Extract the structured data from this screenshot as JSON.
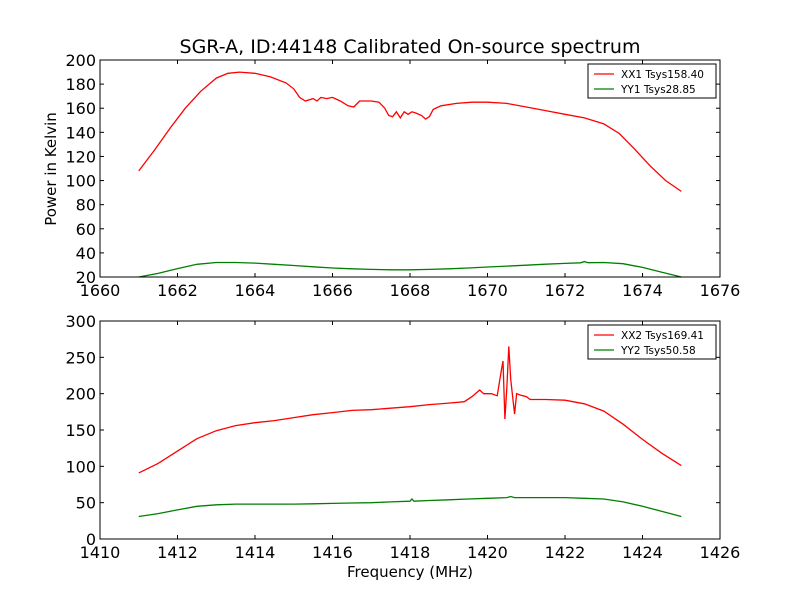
{
  "figure": {
    "title": "SGR-A, ID:44148 Calibrated On-source spectrum",
    "bottom_xlabel": "Frequency (MHz)"
  },
  "chart_data": [
    {
      "type": "line",
      "title": "SGR-A, ID:44148 Calibrated On-source spectrum",
      "xlabel": "",
      "ylabel": "Power in Kelvin",
      "xlim": [
        1660,
        1676
      ],
      "ylim": [
        20,
        200
      ],
      "xticks": [
        "1660",
        "1662",
        "1664",
        "1666",
        "1668",
        "1670",
        "1672",
        "1674",
        "1676"
      ],
      "yticks": [
        "20",
        "40",
        "60",
        "80",
        "100",
        "120",
        "140",
        "160",
        "180",
        "200"
      ],
      "legend_position": "top-right",
      "series": [
        {
          "name": "XX1 Tsys158.40",
          "color": "#ff0000",
          "points": [
            [
              1661.0,
              108
            ],
            [
              1661.4,
              125
            ],
            [
              1661.8,
              143
            ],
            [
              1662.2,
              160
            ],
            [
              1662.6,
              174
            ],
            [
              1663.0,
              185
            ],
            [
              1663.3,
              189
            ],
            [
              1663.6,
              190
            ],
            [
              1664.0,
              189
            ],
            [
              1664.4,
              186
            ],
            [
              1664.8,
              181
            ],
            [
              1665.0,
              176
            ],
            [
              1665.15,
              169
            ],
            [
              1665.3,
              166
            ],
            [
              1665.5,
              168
            ],
            [
              1665.6,
              166
            ],
            [
              1665.7,
              169
            ],
            [
              1665.85,
              168
            ],
            [
              1666.0,
              169
            ],
            [
              1666.2,
              166
            ],
            [
              1666.4,
              162
            ],
            [
              1666.55,
              161
            ],
            [
              1666.7,
              166
            ],
            [
              1667.0,
              166
            ],
            [
              1667.2,
              165
            ],
            [
              1667.35,
              160
            ],
            [
              1667.45,
              154
            ],
            [
              1667.55,
              153
            ],
            [
              1667.65,
              157
            ],
            [
              1667.75,
              152
            ],
            [
              1667.85,
              157
            ],
            [
              1667.95,
              155
            ],
            [
              1668.05,
              157
            ],
            [
              1668.15,
              156
            ],
            [
              1668.3,
              154
            ],
            [
              1668.4,
              151
            ],
            [
              1668.5,
              153
            ],
            [
              1668.6,
              159
            ],
            [
              1668.8,
              162
            ],
            [
              1669.2,
              164
            ],
            [
              1669.6,
              165
            ],
            [
              1670.0,
              165
            ],
            [
              1670.5,
              164
            ],
            [
              1671.0,
              161
            ],
            [
              1671.5,
              158
            ],
            [
              1672.0,
              155
            ],
            [
              1672.5,
              152
            ],
            [
              1673.0,
              147
            ],
            [
              1673.4,
              139
            ],
            [
              1673.8,
              126
            ],
            [
              1674.2,
              112
            ],
            [
              1674.6,
              100
            ],
            [
              1675.0,
              91
            ]
          ]
        },
        {
          "name": "YY1 Tsys28.85",
          "color": "#007f00",
          "points": [
            [
              1661.0,
              20
            ],
            [
              1661.5,
              23
            ],
            [
              1662.0,
              27
            ],
            [
              1662.5,
              30.5
            ],
            [
              1663.0,
              32
            ],
            [
              1663.5,
              32
            ],
            [
              1664.0,
              31.5
            ],
            [
              1664.5,
              30.5
            ],
            [
              1665.0,
              29.5
            ],
            [
              1665.5,
              28.5
            ],
            [
              1666.0,
              27.5
            ],
            [
              1666.5,
              26.8
            ],
            [
              1667.0,
              26.3
            ],
            [
              1667.5,
              26
            ],
            [
              1668.0,
              26
            ],
            [
              1668.5,
              26.3
            ],
            [
              1669.0,
              26.8
            ],
            [
              1669.5,
              27.5
            ],
            [
              1670.0,
              28.3
            ],
            [
              1670.5,
              29
            ],
            [
              1671.0,
              29.8
            ],
            [
              1671.5,
              30.6
            ],
            [
              1672.0,
              31.3
            ],
            [
              1672.4,
              31.8
            ],
            [
              1672.5,
              32.8
            ],
            [
              1672.6,
              31.9
            ],
            [
              1673.0,
              32
            ],
            [
              1673.5,
              31
            ],
            [
              1674.0,
              28
            ],
            [
              1674.5,
              24
            ],
            [
              1675.0,
              20
            ]
          ]
        }
      ]
    },
    {
      "type": "line",
      "title": "",
      "xlabel": "Frequency (MHz)",
      "ylabel": "",
      "xlim": [
        1410,
        1426
      ],
      "ylim": [
        0,
        300
      ],
      "xticks": [
        "1410",
        "1412",
        "1414",
        "1416",
        "1418",
        "1420",
        "1422",
        "1424",
        "1426"
      ],
      "yticks": [
        "0",
        "50",
        "100",
        "150",
        "200",
        "250",
        "300"
      ],
      "legend_position": "top-right",
      "series": [
        {
          "name": "XX2 Tsys169.41",
          "color": "#ff0000",
          "points": [
            [
              1411.0,
              91
            ],
            [
              1411.5,
              104
            ],
            [
              1412.0,
              121
            ],
            [
              1412.5,
              138
            ],
            [
              1413.0,
              149
            ],
            [
              1413.5,
              156
            ],
            [
              1414.0,
              160
            ],
            [
              1414.5,
              163
            ],
            [
              1415.0,
              167
            ],
            [
              1415.5,
              171
            ],
            [
              1416.0,
              174
            ],
            [
              1416.5,
              177
            ],
            [
              1417.0,
              178
            ],
            [
              1417.5,
              180
            ],
            [
              1418.0,
              182
            ],
            [
              1418.5,
              185
            ],
            [
              1419.0,
              187
            ],
            [
              1419.4,
              189
            ],
            [
              1419.6,
              196
            ],
            [
              1419.8,
              205
            ],
            [
              1419.9,
              200
            ],
            [
              1420.1,
              200
            ],
            [
              1420.25,
              197
            ],
            [
              1420.35,
              230
            ],
            [
              1420.4,
              245
            ],
            [
              1420.45,
              165
            ],
            [
              1420.5,
              210
            ],
            [
              1420.55,
              265
            ],
            [
              1420.6,
              220
            ],
            [
              1420.65,
              195
            ],
            [
              1420.7,
              172
            ],
            [
              1420.75,
              200
            ],
            [
              1420.85,
              198
            ],
            [
              1421.0,
              196
            ],
            [
              1421.1,
              192
            ],
            [
              1421.5,
              192
            ],
            [
              1422.0,
              191
            ],
            [
              1422.5,
              186
            ],
            [
              1423.0,
              176
            ],
            [
              1423.5,
              158
            ],
            [
              1424.0,
              137
            ],
            [
              1424.5,
              118
            ],
            [
              1425.0,
              101
            ]
          ]
        },
        {
          "name": "YY2 Tsys50.58",
          "color": "#007f00",
          "points": [
            [
              1411.0,
              31
            ],
            [
              1411.5,
              35
            ],
            [
              1412.0,
              40
            ],
            [
              1412.5,
              45
            ],
            [
              1413.0,
              47
            ],
            [
              1413.5,
              48
            ],
            [
              1414.0,
              48
            ],
            [
              1414.5,
              48
            ],
            [
              1415.0,
              48
            ],
            [
              1415.5,
              48.5
            ],
            [
              1416.0,
              49
            ],
            [
              1416.5,
              49.5
            ],
            [
              1417.0,
              50
            ],
            [
              1417.5,
              51
            ],
            [
              1418.0,
              52
            ],
            [
              1418.05,
              55
            ],
            [
              1418.1,
              52
            ],
            [
              1418.5,
              53
            ],
            [
              1419.0,
              54
            ],
            [
              1419.5,
              55
            ],
            [
              1420.0,
              56
            ],
            [
              1420.5,
              57
            ],
            [
              1420.6,
              58.5
            ],
            [
              1420.7,
              57
            ],
            [
              1421.0,
              57
            ],
            [
              1421.5,
              57
            ],
            [
              1422.0,
              57
            ],
            [
              1422.5,
              56
            ],
            [
              1423.0,
              55
            ],
            [
              1423.5,
              51
            ],
            [
              1424.0,
              45
            ],
            [
              1424.5,
              38
            ],
            [
              1425.0,
              31
            ]
          ]
        }
      ]
    }
  ]
}
